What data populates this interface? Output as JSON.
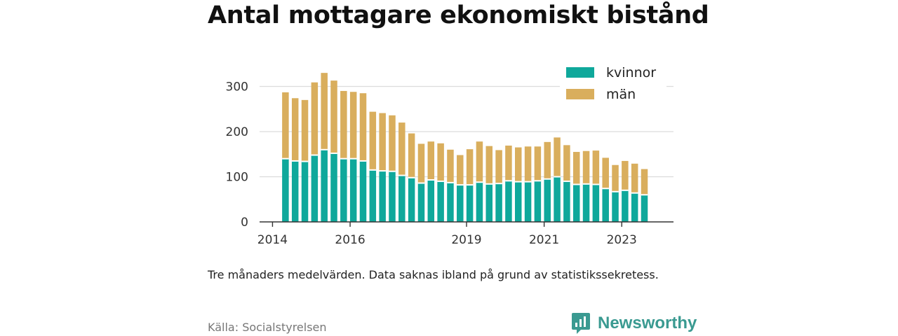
{
  "title": "Antal mottagare ekonomiskt bistånd",
  "note": "Tre månaders medelvärden. Data saknas ibland på grund av statistikssekretess.",
  "source": "Källa: Socialstyrelsen",
  "brand": {
    "name": "Newsworthy",
    "icon": "bar-chart-speech-bubble-icon",
    "color": "#3a9a91"
  },
  "chart_data": {
    "type": "bar",
    "stacked": true,
    "title": "Antal mottagare ekonomiskt bistånd",
    "x_start": "2014-05",
    "x_step_months": 3,
    "series": [
      {
        "name": "kvinnor",
        "color": "#0fa89b",
        "values": [
          140,
          135,
          134,
          148,
          160,
          152,
          140,
          140,
          135,
          115,
          113,
          112,
          103,
          98,
          86,
          93,
          90,
          87,
          82,
          82,
          88,
          84,
          85,
          91,
          89,
          89,
          91,
          95,
          100,
          90,
          83,
          84,
          83,
          74,
          67,
          70,
          64,
          60
        ]
      },
      {
        "name": "män",
        "color": "#d9ae5d",
        "values": [
          147,
          139,
          136,
          161,
          170,
          161,
          150,
          148,
          150,
          129,
          128,
          124,
          117,
          98,
          87,
          85,
          84,
          73,
          66,
          79,
          90,
          84,
          74,
          78,
          76,
          78,
          76,
          82,
          87,
          80,
          72,
          73,
          75,
          68,
          59,
          65,
          65,
          57
        ]
      }
    ],
    "y_ticks": [
      0,
      100,
      200,
      300
    ],
    "ylim": [
      0,
      340
    ],
    "x_ticks": [
      {
        "label": "2014",
        "date": "2014-01"
      },
      {
        "label": "2016",
        "date": "2016-01"
      },
      {
        "label": "2019",
        "date": "2019-01"
      },
      {
        "label": "2021",
        "date": "2021-01"
      },
      {
        "label": "2023",
        "date": "2023-01"
      }
    ],
    "xlim": [
      "2013-09",
      "2024-05"
    ],
    "grid": true,
    "legend_position": "top-right"
  }
}
